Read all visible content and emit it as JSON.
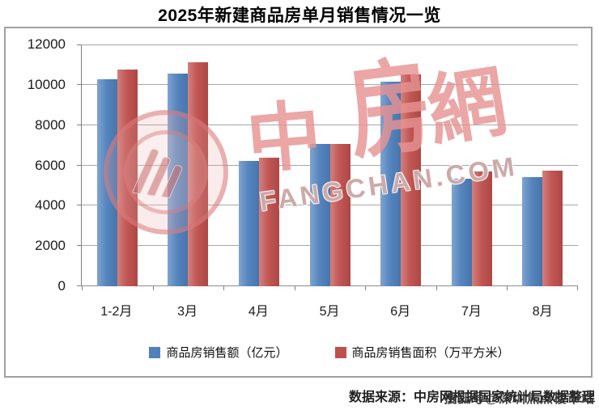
{
  "title": "2025年新建商品房单月销售情况一览",
  "chart_data": {
    "type": "bar",
    "title": "2025年新建商品房单月销售情况一览",
    "categories": [
      "1-2月",
      "3月",
      "4月",
      "5月",
      "6月",
      "7月",
      "8月"
    ],
    "series": [
      {
        "name": "商品房销售额（亿元）",
        "color": "#4F81BD",
        "values": [
          10259,
          10539,
          6237,
          7056,
          10150,
          5325,
          5426
        ]
      },
      {
        "name": "商品房销售面积（万平方米）",
        "color": "#C0504D",
        "values": [
          10746,
          11126,
          6390,
          7053,
          10536,
          5709,
          5744
        ]
      }
    ],
    "xlabel": "",
    "ylabel": "",
    "ylim": [
      0,
      12000
    ],
    "yticks": [
      12000,
      10000,
      8000,
      6000,
      4000,
      2000,
      0
    ],
    "grid": "horizontal",
    "legend_position": "bottom-center"
  },
  "watermark": {
    "chars": [
      "中",
      "房",
      "網"
    ],
    "latin": "FANGCHAN.COM",
    "pink": "#E79C9C"
  },
  "source": {
    "text": "数据来源：中房网根据国家统计局数据整理",
    "overlay": "搜狐号@深圳焦点楼市站"
  },
  "colors": {
    "series_blue": "#4F81BD",
    "series_red": "#C0504D",
    "gridline": "#A6A6A6",
    "axis": "#808080",
    "chart_border": "#A0A0A0"
  }
}
